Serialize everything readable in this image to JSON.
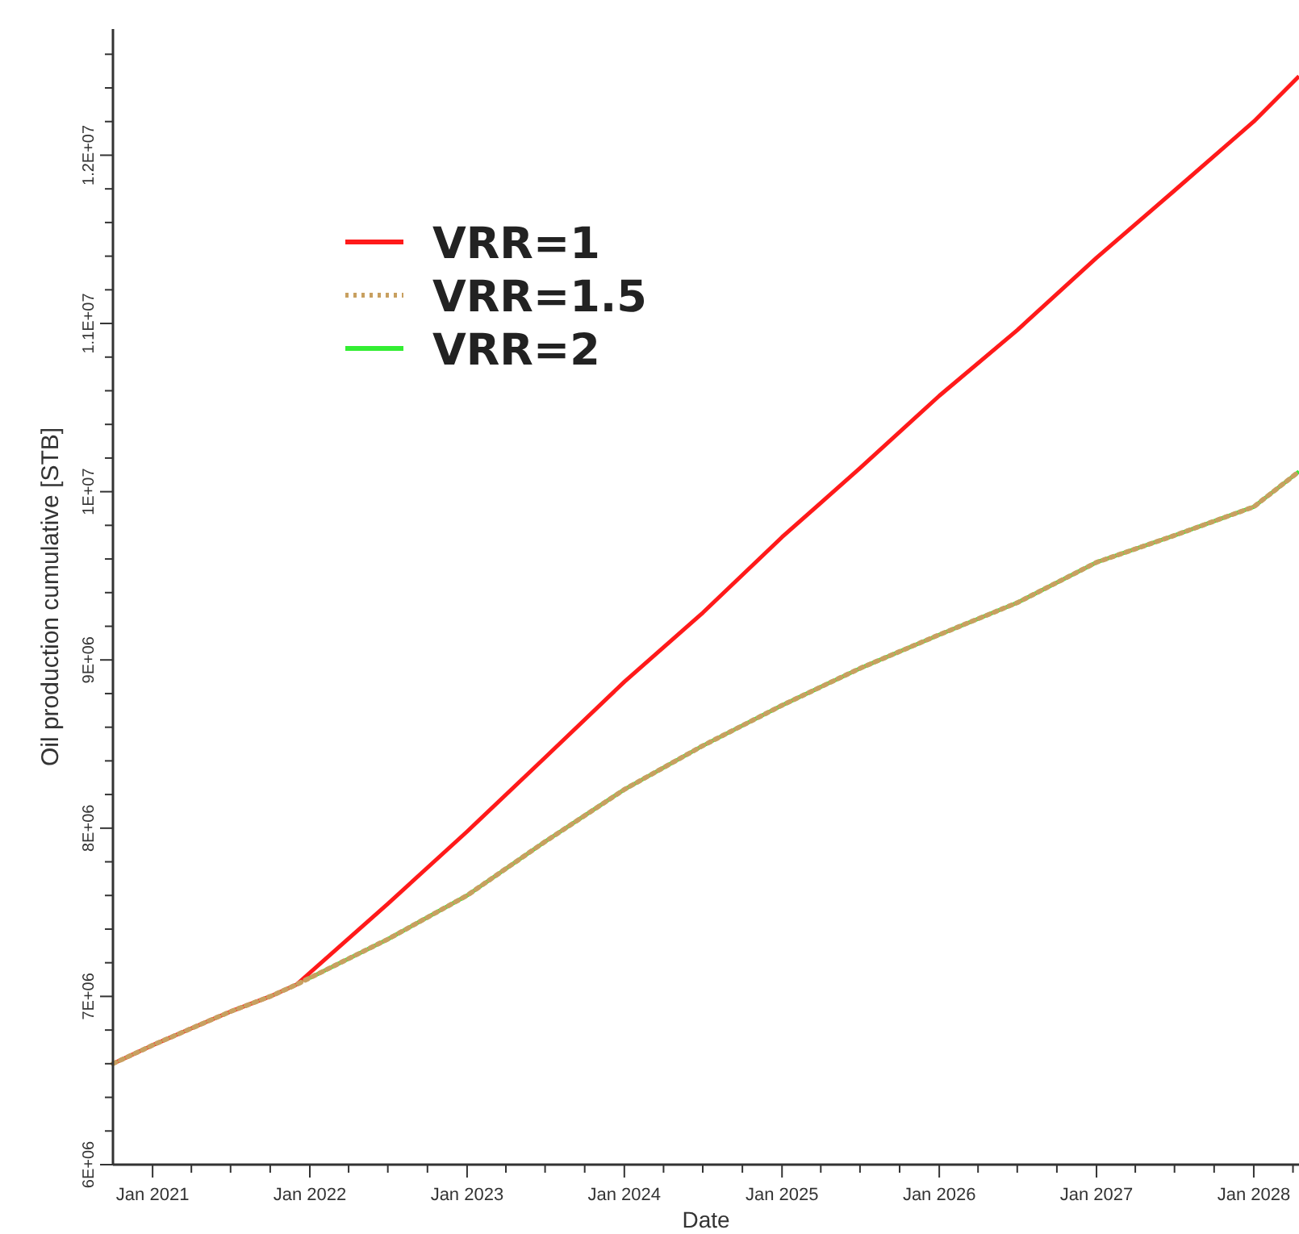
{
  "chart_data": {
    "type": "line",
    "xlabel": "Date",
    "ylabel": "Oil production cumulative [STB]",
    "xlim": [
      "2020-10-01",
      "2028-04-15"
    ],
    "xticks": [
      {
        "value": "2021-01",
        "label": "Jan 2021"
      },
      {
        "value": "2021-04",
        "label": null
      },
      {
        "value": "2021-07",
        "label": null
      },
      {
        "value": "2021-10",
        "label": null
      },
      {
        "value": "2022-01",
        "label": "Jan 2022"
      },
      {
        "value": "2022-04",
        "label": null
      },
      {
        "value": "2022-07",
        "label": null
      },
      {
        "value": "2022-10",
        "label": null
      },
      {
        "value": "2023-01",
        "label": "Jan 2023"
      },
      {
        "value": "2023-04",
        "label": null
      },
      {
        "value": "2023-07",
        "label": null
      },
      {
        "value": "2023-10",
        "label": null
      },
      {
        "value": "2024-01",
        "label": "Jan 2024"
      },
      {
        "value": "2024-04",
        "label": null
      },
      {
        "value": "2024-07",
        "label": null
      },
      {
        "value": "2024-10",
        "label": null
      },
      {
        "value": "2025-01",
        "label": "Jan 2025"
      },
      {
        "value": "2025-04",
        "label": null
      },
      {
        "value": "2025-07",
        "label": null
      },
      {
        "value": "2025-10",
        "label": null
      },
      {
        "value": "2026-01",
        "label": "Jan 2026"
      },
      {
        "value": "2026-04",
        "label": null
      },
      {
        "value": "2026-07",
        "label": null
      },
      {
        "value": "2026-10",
        "label": null
      },
      {
        "value": "2027-01",
        "label": "Jan 2027"
      },
      {
        "value": "2027-04",
        "label": null
      },
      {
        "value": "2027-07",
        "label": null
      },
      {
        "value": "2027-10",
        "label": null
      },
      {
        "value": "2028-01",
        "label": "Jan 2028"
      },
      {
        "value": "2028-04",
        "label": null
      }
    ],
    "ylim": [
      6000000,
      12750000
    ],
    "yticks": [
      {
        "value": 6000000,
        "label": "6E+06"
      },
      {
        "value": 6200000,
        "label": null
      },
      {
        "value": 6400000,
        "label": null
      },
      {
        "value": 6600000,
        "label": null
      },
      {
        "value": 6800000,
        "label": null
      },
      {
        "value": 7000000,
        "label": "7E+06"
      },
      {
        "value": 7200000,
        "label": null
      },
      {
        "value": 7400000,
        "label": null
      },
      {
        "value": 7600000,
        "label": null
      },
      {
        "value": 7800000,
        "label": null
      },
      {
        "value": 8000000,
        "label": "8E+06"
      },
      {
        "value": 8200000,
        "label": null
      },
      {
        "value": 8400000,
        "label": null
      },
      {
        "value": 8600000,
        "label": null
      },
      {
        "value": 8800000,
        "label": null
      },
      {
        "value": 9000000,
        "label": "9E+06"
      },
      {
        "value": 9200000,
        "label": null
      },
      {
        "value": 9400000,
        "label": null
      },
      {
        "value": 9600000,
        "label": null
      },
      {
        "value": 9800000,
        "label": null
      },
      {
        "value": 10000000,
        "label": "1E+07"
      },
      {
        "value": 10200000,
        "label": null
      },
      {
        "value": 10400000,
        "label": null
      },
      {
        "value": 10600000,
        "label": null
      },
      {
        "value": 10800000,
        "label": null
      },
      {
        "value": 11000000,
        "label": "1.1E+07"
      },
      {
        "value": 11200000,
        "label": null
      },
      {
        "value": 11400000,
        "label": null
      },
      {
        "value": 11600000,
        "label": null
      },
      {
        "value": 11800000,
        "label": null
      },
      {
        "value": 12000000,
        "label": "1.2E+07"
      },
      {
        "value": 12200000,
        "label": null
      },
      {
        "value": 12400000,
        "label": null
      },
      {
        "value": 12600000,
        "label": null
      }
    ],
    "x": [
      "2020-10-01",
      "2021-01-01",
      "2021-04-01",
      "2021-07-01",
      "2021-10-01",
      "2021-12-01",
      "2022-01-01",
      "2022-07-01",
      "2023-01-01",
      "2023-07-01",
      "2024-01-01",
      "2024-07-01",
      "2025-01-01",
      "2025-07-01",
      "2026-01-01",
      "2026-07-01",
      "2027-01-01",
      "2027-07-01",
      "2028-01-01",
      "2028-04-15"
    ],
    "grid": false,
    "legend": "top left",
    "series": [
      {
        "name": "VRR=1",
        "color": "#ff1a1a",
        "line_style": "solid",
        "values": [
          6600000,
          6710000,
          6810000,
          6910000,
          7000000,
          7070000,
          7140000,
          7550000,
          7980000,
          8420000,
          8870000,
          9280000,
          9730000,
          10140000,
          10570000,
          10960000,
          11390000,
          11790000,
          12200000,
          12470000
        ]
      },
      {
        "name": "VRR=1.5",
        "color": "#c8a060",
        "line_style": "dotted",
        "values": [
          6600000,
          6710000,
          6810000,
          6910000,
          7000000,
          7070000,
          7110000,
          7340000,
          7600000,
          7920000,
          8230000,
          8490000,
          8730000,
          8950000,
          9150000,
          9340000,
          9580000,
          9740000,
          9910000,
          10120000
        ]
      },
      {
        "name": "VRR=2",
        "color": "#33ee33",
        "line_style": "solid",
        "values": [
          null,
          null,
          null,
          null,
          null,
          null,
          7110000,
          7340000,
          7600000,
          7920000,
          8230000,
          8490000,
          8730000,
          8950000,
          9150000,
          9340000,
          9580000,
          9740000,
          9910000,
          10120000
        ]
      }
    ]
  }
}
